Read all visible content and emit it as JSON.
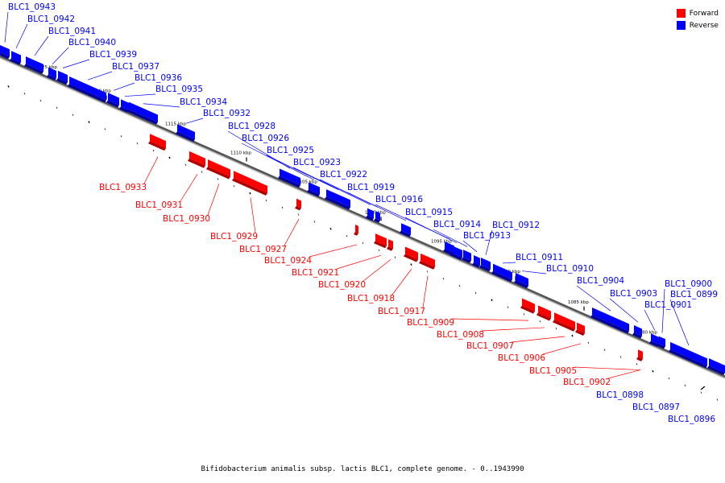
{
  "caption": "Bifidobacterium animalis subsp. lactis BLC1, complete genome. - 0..1943990",
  "legend": [
    {
      "label": "Forward",
      "color": "#ff0000"
    },
    {
      "label": "Reverse",
      "color": "#0000ff"
    }
  ],
  "colors": {
    "forward": "#ff0000",
    "reverse": "#0000ff",
    "backbone": "#888888"
  },
  "kbp_marks": [
    "1125 kbp",
    "1120 kbp",
    "1115 kbp",
    "1110 kbp",
    "1105 kbp",
    "1100 kbp",
    "1095 kbp",
    "1090 kbp",
    "1085 kbp",
    "1080 kbp"
  ],
  "reverse_genes": [
    "BLC1_0943",
    "BLC1_0942",
    "BLC1_0941",
    "BLC1_0940",
    "BLC1_0939",
    "BLC1_0937",
    "BLC1_0936",
    "BLC1_0935",
    "BLC1_0934",
    "BLC1_0932",
    "BLC1_0928",
    "BLC1_0926",
    "BLC1_0925",
    "BLC1_0923",
    "BLC1_0922",
    "BLC1_0919",
    "BLC1_0916",
    "BLC1_0915",
    "BLC1_0914",
    "BLC1_0913",
    "BLC1_0912",
    "BLC1_0911",
    "BLC1_0910",
    "BLC1_0904",
    "BLC1_0903",
    "BLC1_0901",
    "BLC1_0900",
    "BLC1_0899",
    "BLC1_0898",
    "BLC1_0897",
    "BLC1_0896"
  ],
  "forward_genes": [
    "BLC1_0933",
    "BLC1_0931",
    "BLC1_0930",
    "BLC1_0929",
    "BLC1_0927",
    "BLC1_0924",
    "BLC1_0921",
    "BLC1_0920",
    "BLC1_0918",
    "BLC1_0917",
    "BLC1_0909",
    "BLC1_0908",
    "BLC1_0907",
    "BLC1_0906",
    "BLC1_0905",
    "BLC1_0902"
  ]
}
